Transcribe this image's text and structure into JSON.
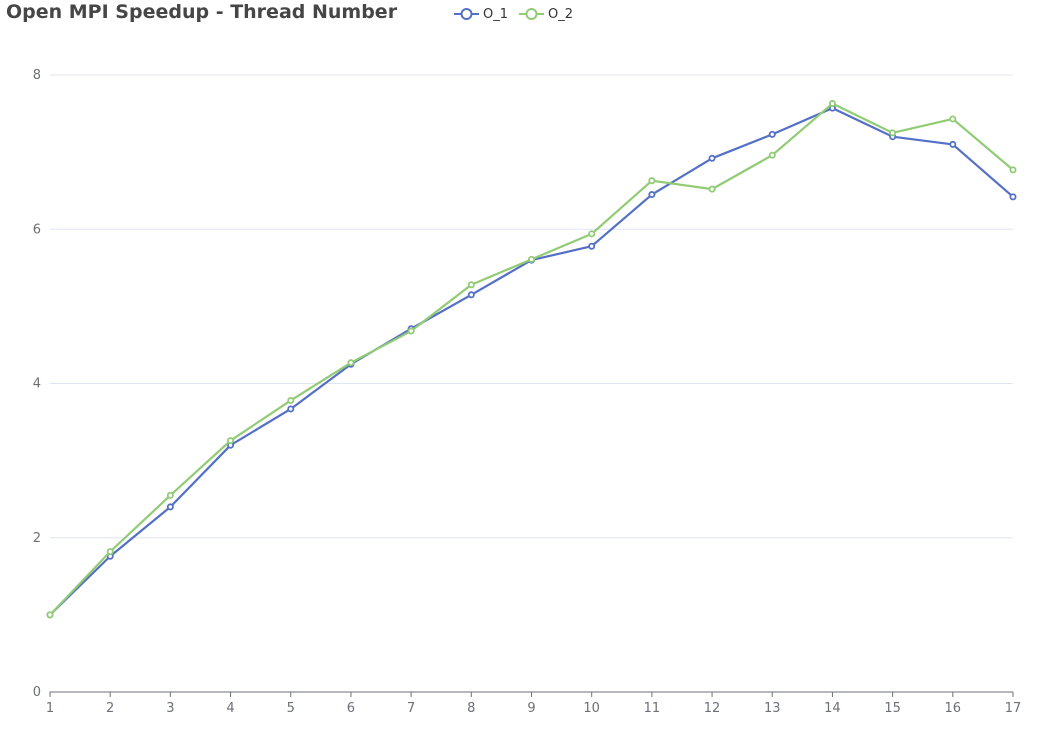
{
  "chart_data": {
    "type": "line",
    "title": "Open MPI Speedup - Thread Number",
    "xlabel": "",
    "ylabel": "",
    "x": [
      1,
      2,
      3,
      4,
      5,
      6,
      7,
      8,
      9,
      10,
      11,
      12,
      13,
      14,
      15,
      16,
      17
    ],
    "ylim": [
      0,
      8
    ],
    "yticks": [
      0,
      2,
      4,
      6,
      8
    ],
    "grid": "horizontal",
    "legend_position": "top",
    "series": [
      {
        "name": "O_1",
        "color": "#5470c6",
        "values": [
          1.0,
          1.76,
          2.4,
          3.2,
          3.67,
          4.25,
          4.71,
          5.15,
          5.6,
          5.78,
          6.45,
          6.92,
          7.23,
          7.57,
          7.2,
          7.1,
          6.42
        ]
      },
      {
        "name": "O_2",
        "color": "#91cc75",
        "values": [
          1.0,
          1.82,
          2.55,
          3.26,
          3.78,
          4.27,
          4.68,
          5.28,
          5.61,
          5.94,
          6.63,
          6.52,
          6.96,
          7.63,
          7.25,
          7.43,
          6.77
        ]
      }
    ]
  }
}
